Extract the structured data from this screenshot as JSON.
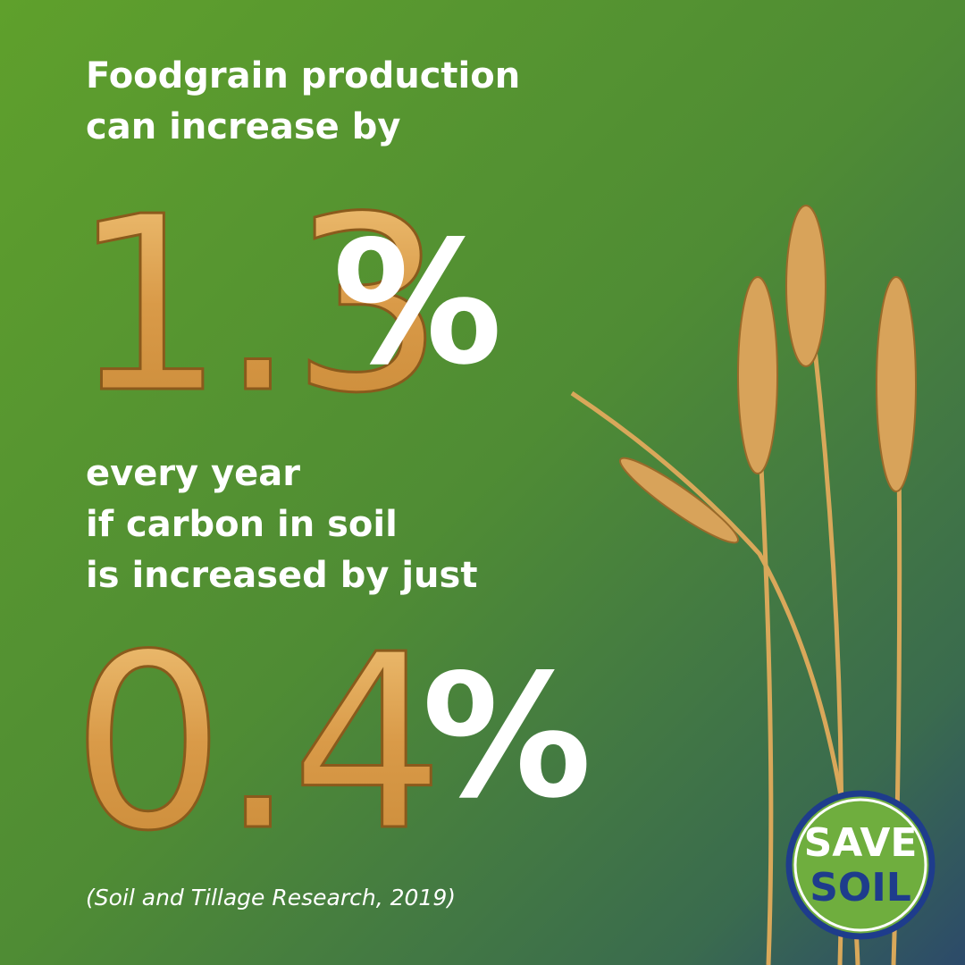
{
  "headline": {
    "lines": [
      "Foodgrain production",
      "can increase by"
    ]
  },
  "first_figure": {
    "value": 1.3,
    "unit": "%"
  },
  "condition": {
    "lines": [
      "every year",
      "if carbon in soil",
      "is increased by just"
    ]
  },
  "second_figure": {
    "value": 0.4,
    "unit": "%"
  },
  "citation": "(Soil and Tillage Research, 2019)",
  "logo": {
    "lines": [
      "SAVE",
      "SOIL"
    ]
  }
}
